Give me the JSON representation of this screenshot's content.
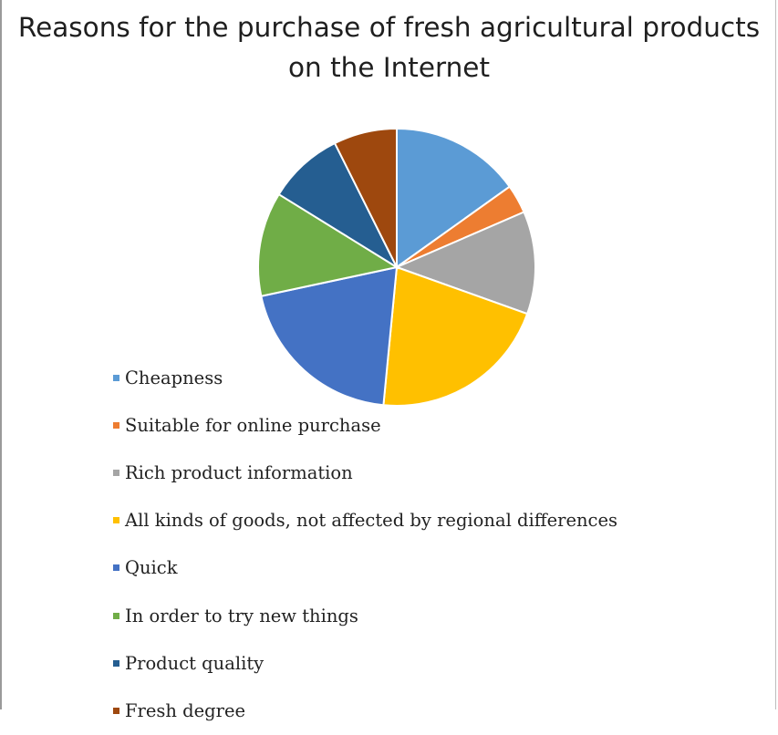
{
  "chart_data": {
    "type": "pie",
    "title_lines": [
      "Reasons for the purchase of fresh agricultural products",
      "on the Internet"
    ],
    "categories": [
      "Cheapness",
      "Suitable for online purchase",
      "Rich product information",
      "All kinds of goods, not affected by regional differences",
      "Quick",
      "In order to try new things",
      "Product quality",
      "Fresh degree"
    ],
    "values": [
      15.8,
      3.5,
      12.5,
      22.0,
      21.0,
      12.7,
      9.2,
      7.7
    ],
    "colors": [
      "#5b9bd5",
      "#ed7d31",
      "#a5a5a5",
      "#ffc000",
      "#4472c4",
      "#70ad47",
      "#255e91",
      "#9e480e"
    ],
    "start_angle_deg": 0,
    "direction": "clockwise",
    "legend_position": "left"
  }
}
